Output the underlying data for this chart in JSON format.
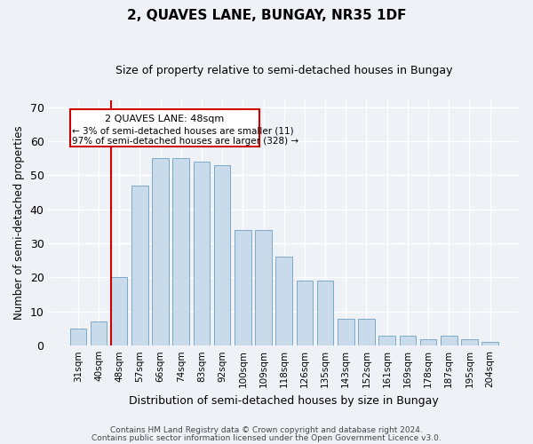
{
  "title": "2, QUAVES LANE, BUNGAY, NR35 1DF",
  "subtitle": "Size of property relative to semi-detached houses in Bungay",
  "xlabel": "Distribution of semi-detached houses by size in Bungay",
  "ylabel": "Number of semi-detached properties",
  "categories": [
    "31sqm",
    "40sqm",
    "48sqm",
    "57sqm",
    "66sqm",
    "74sqm",
    "83sqm",
    "92sqm",
    "100sqm",
    "109sqm",
    "118sqm",
    "126sqm",
    "135sqm",
    "143sqm",
    "152sqm",
    "161sqm",
    "169sqm",
    "178sqm",
    "187sqm",
    "195sqm",
    "204sqm"
  ],
  "values": [
    5,
    7,
    20,
    47,
    55,
    55,
    54,
    53,
    34,
    34,
    26,
    19,
    19,
    8,
    8,
    3,
    3,
    2,
    3,
    2,
    1
  ],
  "bar_color": "#c9daea",
  "bar_edge_color": "#7aaac8",
  "highlight_color": "#cc0000",
  "annotation_title": "2 QUAVES LANE: 48sqm",
  "annotation_line1": "← 3% of semi-detached houses are smaller (11)",
  "annotation_line2": "97% of semi-detached houses are larger (328) →",
  "ylim": [
    0,
    72
  ],
  "yticks": [
    0,
    10,
    20,
    30,
    40,
    50,
    60,
    70
  ],
  "footnote1": "Contains HM Land Registry data © Crown copyright and database right 2024.",
  "footnote2": "Contains public sector information licensed under the Open Government Licence v3.0.",
  "bg_color": "#eef2f7",
  "plot_bg_color": "#eef2f7"
}
